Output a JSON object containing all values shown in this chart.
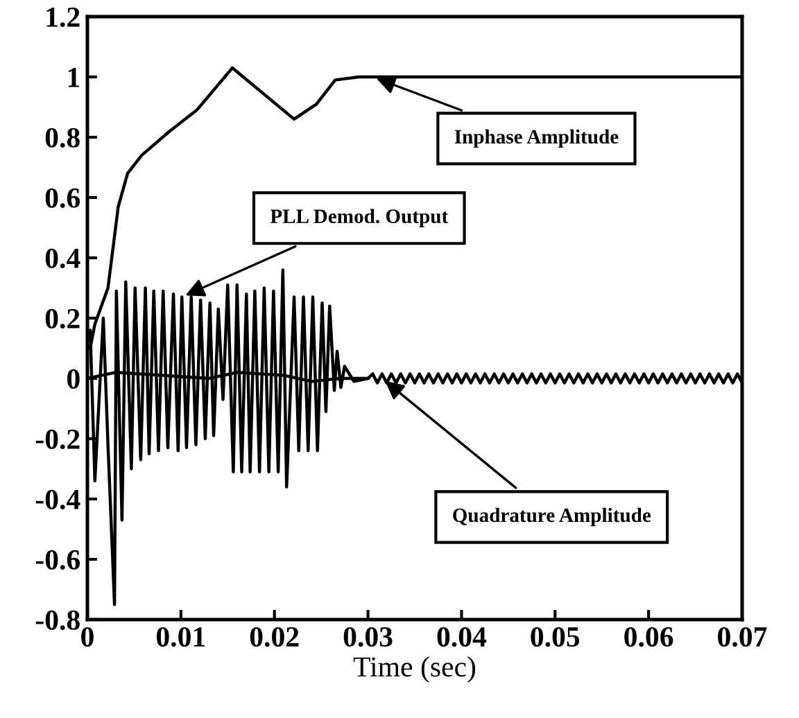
{
  "chart_data": {
    "type": "line",
    "xlabel": "Time (sec)",
    "xlim": [
      0,
      0.07
    ],
    "ylim": [
      -0.8,
      1.2
    ],
    "xticks": [
      0,
      0.01,
      0.02,
      0.03,
      0.04,
      0.05,
      0.06,
      0.07
    ],
    "yticks": [
      -0.8,
      -0.6,
      -0.4,
      -0.2,
      0,
      0.2,
      0.4,
      0.6,
      0.8,
      1,
      1.2
    ],
    "grid": false,
    "marker": "none",
    "line_style": "solid",
    "series": [
      {
        "color": "#000000",
        "x": [
          0.0003,
          0.0008,
          0.0022,
          0.0033,
          0.0043,
          0.0058,
          0.0088,
          0.0117,
          0.0155,
          0.0221,
          0.0245,
          0.0265,
          0.029,
          0.035,
          0.07
        ],
        "values": [
          0.1,
          0.18,
          0.3,
          0.57,
          0.68,
          0.74,
          0.82,
          0.89,
          1.03,
          0.86,
          0.91,
          0.99,
          1.0,
          1.0,
          1.0
        ]
      },
      {
        "color": "#000000",
        "x": [
          0,
          0.0003,
          0.0008,
          0.0017,
          0.0022,
          0.0029,
          0.0031,
          0.0037,
          0.0041,
          0.0047,
          0.0051,
          0.0057,
          0.0062,
          0.0066,
          0.0071,
          0.0076,
          0.0081,
          0.0086,
          0.0092,
          0.0097,
          0.0101,
          0.0106,
          0.0111,
          0.0116,
          0.0121,
          0.0126,
          0.0131,
          0.0135,
          0.014,
          0.0145,
          0.015,
          0.0156,
          0.016,
          0.0165,
          0.017,
          0.0174,
          0.0179,
          0.0184,
          0.0189,
          0.0194,
          0.0199,
          0.0204,
          0.0209,
          0.0213,
          0.0221,
          0.0226,
          0.0231,
          0.0236,
          0.0241,
          0.0246,
          0.0251,
          0.0255,
          0.0259,
          0.0264,
          0.0267,
          0.0271,
          0.0275,
          0.0285,
          0.03
        ],
        "values": [
          0.15,
          0.16,
          -0.34,
          0.2,
          -0.22,
          -0.75,
          0.29,
          -0.47,
          0.32,
          -0.3,
          0.3,
          -0.27,
          0.3,
          -0.25,
          0.29,
          -0.24,
          0.29,
          -0.23,
          0.28,
          -0.24,
          0.27,
          -0.23,
          0.27,
          -0.22,
          0.26,
          -0.2,
          0.25,
          -0.19,
          0.23,
          -0.07,
          0.31,
          -0.31,
          0.31,
          -0.31,
          0.28,
          -0.31,
          0.29,
          -0.31,
          0.3,
          -0.31,
          0.29,
          -0.31,
          0.36,
          -0.36,
          0.27,
          -0.24,
          0.27,
          -0.24,
          0.27,
          -0.24,
          0.25,
          -0.11,
          0.24,
          -0.04,
          0.09,
          -0.03,
          0.04,
          -0.01,
          0
        ]
      },
      {
        "color": "#000000",
        "x": [
          0,
          0.003,
          0.008,
          0.013,
          0.016,
          0.021,
          0.024,
          0.027,
          0.03,
          0.0305,
          0.031,
          0.0315,
          0.032,
          0.0325,
          0.033,
          0.0335,
          0.034,
          0.0345,
          0.035,
          0.0355,
          0.036,
          0.0365,
          0.037,
          0.0375,
          0.038,
          0.0385,
          0.039,
          0.0395,
          0.04,
          0.0405,
          0.041,
          0.0415,
          0.042,
          0.0425,
          0.043,
          0.0435,
          0.044,
          0.0445,
          0.045,
          0.0455,
          0.046,
          0.0465,
          0.047,
          0.0475,
          0.048,
          0.0485,
          0.049,
          0.0495,
          0.05,
          0.0505,
          0.051,
          0.0515,
          0.052,
          0.0525,
          0.053,
          0.0535,
          0.054,
          0.0545,
          0.055,
          0.0555,
          0.056,
          0.0565,
          0.057,
          0.0575,
          0.058,
          0.0585,
          0.059,
          0.0595,
          0.06,
          0.0605,
          0.061,
          0.0615,
          0.062,
          0.0625,
          0.063,
          0.0635,
          0.064,
          0.0645,
          0.065,
          0.0655,
          0.066,
          0.0665,
          0.067,
          0.0675,
          0.068,
          0.0685,
          0.069,
          0.0695,
          0.07
        ],
        "values": [
          0,
          0.02,
          0.01,
          0,
          0.02,
          0.01,
          -0.01,
          0,
          0,
          0.015,
          -0.015,
          0.015,
          -0.015,
          0.015,
          -0.015,
          0.015,
          -0.015,
          0.015,
          -0.015,
          0.015,
          -0.015,
          0.015,
          -0.015,
          0.015,
          -0.015,
          0.015,
          -0.015,
          0.015,
          -0.015,
          0.015,
          -0.015,
          0.015,
          -0.015,
          0.015,
          -0.015,
          0.015,
          -0.015,
          0.015,
          -0.015,
          0.015,
          -0.015,
          0.015,
          -0.015,
          0.015,
          -0.015,
          0.015,
          -0.015,
          0.015,
          -0.015,
          0.015,
          -0.015,
          0.015,
          -0.015,
          0.015,
          -0.015,
          0.015,
          -0.015,
          0.015,
          -0.015,
          0.015,
          -0.015,
          0.015,
          -0.015,
          0.015,
          -0.015,
          0.015,
          -0.015,
          0.015,
          -0.015,
          0.015,
          -0.015,
          0.015,
          -0.015,
          0.015,
          -0.015,
          0.015,
          -0.015,
          0.015,
          -0.015,
          0.015,
          -0.015,
          0.015,
          -0.015,
          0.015,
          -0.015,
          0.015,
          -0.015,
          0.015,
          -0.015
        ]
      }
    ],
    "annotations": [
      {
        "text": "Inphase Amplitude",
        "x": 0.0305,
        "y": 1.0
      },
      {
        "text": "PLL Demod. Output",
        "x": 0.0101,
        "y": 0.27
      },
      {
        "text": "Quadrature Amplitude",
        "x": 0.0315,
        "y": 0.0
      }
    ]
  }
}
